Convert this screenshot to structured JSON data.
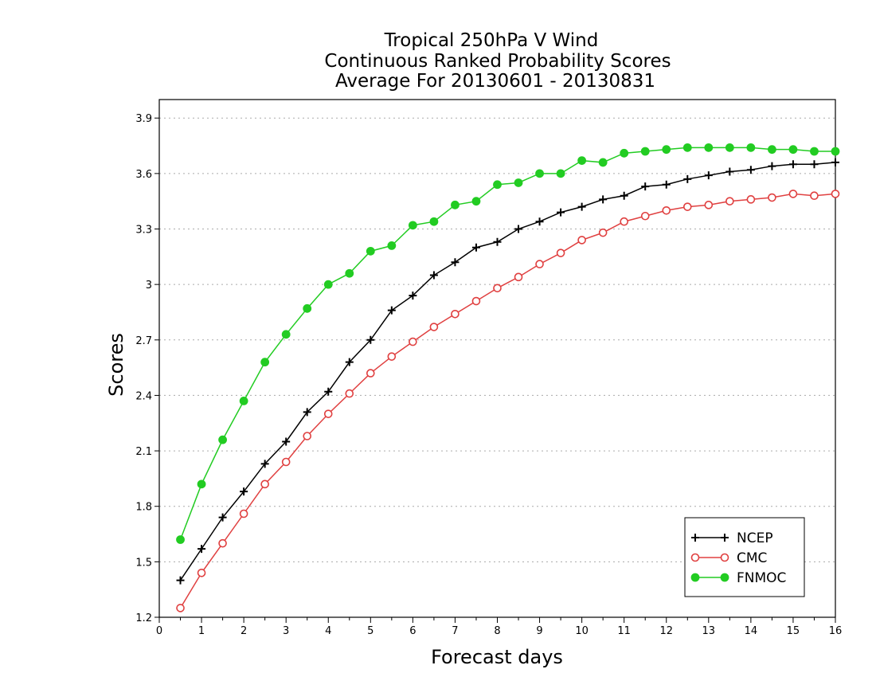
{
  "chart_data": {
    "type": "line",
    "title": [
      "Tropical 250hPa V Wind",
      "Continuous Ranked Probability Scores",
      "Average For 20130601 - 20130831"
    ],
    "xlabel": "Forecast days",
    "ylabel": "Scores",
    "xlim": [
      0,
      16
    ],
    "ylim": [
      1.2,
      4.0
    ],
    "xticks": [
      "0",
      "1",
      "2",
      "3",
      "4",
      "5",
      "6",
      "7",
      "8",
      "9",
      "10",
      "11",
      "12",
      "13",
      "14",
      "15",
      "16"
    ],
    "yticks": [
      "1.2",
      "1.5",
      "1.8",
      "2.1",
      "2.4",
      "2.7",
      "3",
      "3.3",
      "3.6",
      "3.9"
    ],
    "grid": "horizontal dotted",
    "legend_position": "bottom-right",
    "x": [
      0.5,
      1,
      1.5,
      2,
      2.5,
      3,
      3.5,
      4,
      4.5,
      5,
      5.5,
      6,
      6.5,
      7,
      7.5,
      8,
      8.5,
      9,
      9.5,
      10,
      10.5,
      11,
      11.5,
      12,
      12.5,
      13,
      13.5,
      14,
      14.5,
      15,
      15.5,
      16
    ],
    "series": [
      {
        "name": "NCEP",
        "color": "#000000",
        "marker": "plus",
        "values": [
          1.4,
          1.57,
          1.74,
          1.88,
          2.03,
          2.15,
          2.31,
          2.42,
          2.58,
          2.7,
          2.86,
          2.94,
          3.05,
          3.12,
          3.2,
          3.23,
          3.3,
          3.34,
          3.39,
          3.42,
          3.46,
          3.48,
          3.53,
          3.54,
          3.57,
          3.59,
          3.61,
          3.62,
          3.64,
          3.65,
          3.65,
          3.66
        ]
      },
      {
        "name": "CMC",
        "color": "#e04040",
        "marker": "open-circle",
        "values": [
          1.25,
          1.44,
          1.6,
          1.76,
          1.92,
          2.04,
          2.18,
          2.3,
          2.41,
          2.52,
          2.61,
          2.69,
          2.77,
          2.84,
          2.91,
          2.98,
          3.04,
          3.11,
          3.17,
          3.24,
          3.28,
          3.34,
          3.37,
          3.4,
          3.42,
          3.43,
          3.45,
          3.46,
          3.47,
          3.49,
          3.48,
          3.49
        ]
      },
      {
        "name": "FNMOC",
        "color": "#22cc22",
        "marker": "filled-circle",
        "values": [
          1.62,
          1.92,
          2.16,
          2.37,
          2.58,
          2.73,
          2.87,
          3.0,
          3.06,
          3.18,
          3.21,
          3.32,
          3.34,
          3.43,
          3.45,
          3.54,
          3.55,
          3.6,
          3.6,
          3.67,
          3.66,
          3.71,
          3.72,
          3.73,
          3.74,
          3.74,
          3.74,
          3.74,
          3.73,
          3.73,
          3.72,
          3.72
        ]
      }
    ]
  }
}
